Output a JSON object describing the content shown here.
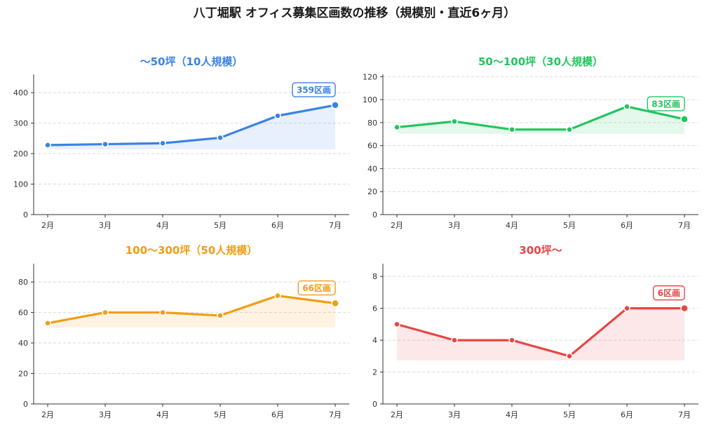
{
  "figure": {
    "title": "八丁堀駅 オフィス募集区画数の推移（規模別・直近6ヶ月）"
  },
  "chart_data": [
    {
      "type": "line",
      "title": "〜50坪（10人規模）",
      "color": "#3b82e6",
      "categories": [
        "2月",
        "3月",
        "4月",
        "5月",
        "6月",
        "7月"
      ],
      "values": [
        228,
        231,
        234,
        252,
        324,
        359
      ],
      "ylim": [
        0,
        460
      ],
      "yticks": [
        0,
        100,
        200,
        300,
        400
      ],
      "grid": true,
      "callout": "359区画"
    },
    {
      "type": "line",
      "title": "50〜100坪（30人規模）",
      "color": "#22c55e",
      "categories": [
        "2月",
        "3月",
        "4月",
        "5月",
        "6月",
        "7月"
      ],
      "values": [
        76,
        81,
        74,
        74,
        94,
        83
      ],
      "ylim": [
        0,
        122
      ],
      "yticks": [
        0,
        20,
        40,
        60,
        80,
        100,
        120
      ],
      "grid": true,
      "callout": "83区画"
    },
    {
      "type": "line",
      "title": "100〜300坪（50人規模）",
      "color": "#f39c12",
      "categories": [
        "2月",
        "3月",
        "4月",
        "5月",
        "6月",
        "7月"
      ],
      "values": [
        53,
        60,
        60,
        58,
        71,
        66
      ],
      "ylim": [
        0,
        92
      ],
      "yticks": [
        0,
        20,
        40,
        60,
        80
      ],
      "grid": true,
      "callout": "66区画"
    },
    {
      "type": "line",
      "title": "300坪〜",
      "color": "#e84545",
      "categories": [
        "2月",
        "3月",
        "4月",
        "5月",
        "6月",
        "7月"
      ],
      "values": [
        5,
        4,
        4,
        3,
        6,
        6
      ],
      "ylim": [
        0,
        8.8
      ],
      "yticks": [
        0,
        2,
        4,
        6,
        8
      ],
      "grid": true,
      "callout": "6区画"
    }
  ]
}
